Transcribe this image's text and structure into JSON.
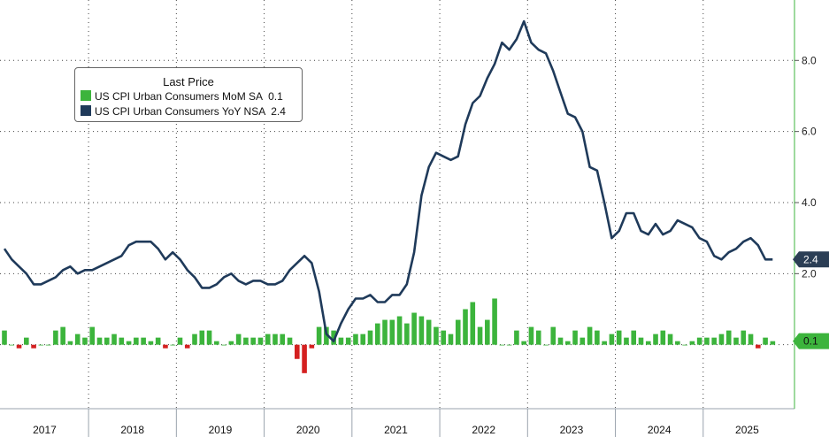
{
  "chart_data": {
    "type": "bar+line",
    "legend": {
      "title": "Last Price",
      "placement": "top-left",
      "entries": [
        {
          "name": "US CPI Urban Consumers MoM SA",
          "value": "0.1",
          "color": "#3cb43c"
        },
        {
          "name": "US CPI Urban Consumers YoY NSA",
          "value": "2.4",
          "color": "#1f3a5a"
        }
      ]
    },
    "y_axis": {
      "position": "right",
      "ticks": [
        "2.0",
        "4.0",
        "6.0",
        "8.0"
      ],
      "tick_values": [
        2,
        4,
        6,
        8
      ],
      "range": [
        -1.8,
        9.7
      ],
      "grid": true
    },
    "x_axis": {
      "years": [
        "2017",
        "2018",
        "2019",
        "2020",
        "2021",
        "2022",
        "2023",
        "2024",
        "2025"
      ],
      "start": "2017-01",
      "end": "2025-05"
    },
    "badges": [
      {
        "series": "yoy",
        "text": "2.4",
        "value": 2.4,
        "color": "#2b3e55"
      },
      {
        "series": "mom",
        "text": "0.1",
        "value": 0.1,
        "color": "#3cb43c"
      }
    ],
    "colors": {
      "positive_bar": "#3cb43c",
      "negative_bar": "#d42020",
      "line": "#1f3a5a"
    },
    "series": [
      {
        "id": "yoy",
        "kind": "line",
        "values": [
          2.7,
          2.4,
          2.2,
          2.0,
          1.7,
          1.7,
          1.8,
          1.9,
          2.1,
          2.2,
          2.0,
          2.1,
          2.1,
          2.2,
          2.3,
          2.4,
          2.5,
          2.8,
          2.9,
          2.9,
          2.9,
          2.7,
          2.4,
          2.6,
          2.4,
          2.1,
          1.9,
          1.6,
          1.6,
          1.7,
          1.9,
          2.0,
          1.8,
          1.7,
          1.8,
          1.8,
          1.7,
          1.7,
          1.8,
          2.1,
          2.3,
          2.5,
          2.3,
          1.5,
          0.3,
          0.1,
          0.6,
          1.0,
          1.3,
          1.3,
          1.4,
          1.2,
          1.2,
          1.4,
          1.4,
          1.7,
          2.6,
          4.2,
          5.0,
          5.4,
          5.3,
          5.2,
          5.3,
          6.2,
          6.8,
          7.0,
          7.5,
          7.9,
          8.5,
          8.3,
          8.6,
          9.1,
          8.5,
          8.3,
          8.2,
          7.7,
          7.1,
          6.5,
          6.4,
          6.0,
          5.0,
          4.9,
          4.0,
          3.0,
          3.2,
          3.7,
          3.7,
          3.2,
          3.1,
          3.4,
          3.1,
          3.2,
          3.5,
          3.4,
          3.3,
          3.0,
          2.9,
          2.5,
          2.4,
          2.6,
          2.7,
          2.9,
          3.0,
          2.8,
          2.4,
          2.4
        ]
      },
      {
        "id": "mom",
        "kind": "bar",
        "values": [
          0.4,
          0.0,
          -0.1,
          0.2,
          -0.1,
          0.0,
          0.0,
          0.4,
          0.5,
          0.1,
          0.3,
          0.2,
          0.5,
          0.2,
          0.2,
          0.3,
          0.2,
          0.1,
          0.2,
          0.2,
          0.1,
          0.2,
          -0.1,
          0.0,
          0.2,
          -0.1,
          0.3,
          0.4,
          0.4,
          0.1,
          0.0,
          0.1,
          0.3,
          0.2,
          0.2,
          0.2,
          0.3,
          0.3,
          0.3,
          0.2,
          -0.4,
          -0.8,
          -0.1,
          0.5,
          0.5,
          0.4,
          0.2,
          0.2,
          0.3,
          0.3,
          0.4,
          0.6,
          0.7,
          0.7,
          0.8,
          0.6,
          0.9,
          0.8,
          0.7,
          0.5,
          0.4,
          0.3,
          0.7,
          1.0,
          1.2,
          0.5,
          0.7,
          1.3,
          0.0,
          0.0,
          0.4,
          0.1,
          0.5,
          0.4,
          0.0,
          0.5,
          0.2,
          0.1,
          0.4,
          0.2,
          0.5,
          0.4,
          0.1,
          0.3,
          0.4,
          0.2,
          0.4,
          0.2,
          0.1,
          0.3,
          0.4,
          0.3,
          0.1,
          0.0,
          0.1,
          0.2,
          0.2,
          0.2,
          0.3,
          0.4,
          0.2,
          0.4,
          0.3,
          -0.1,
          0.2,
          0.1
        ]
      }
    ]
  }
}
